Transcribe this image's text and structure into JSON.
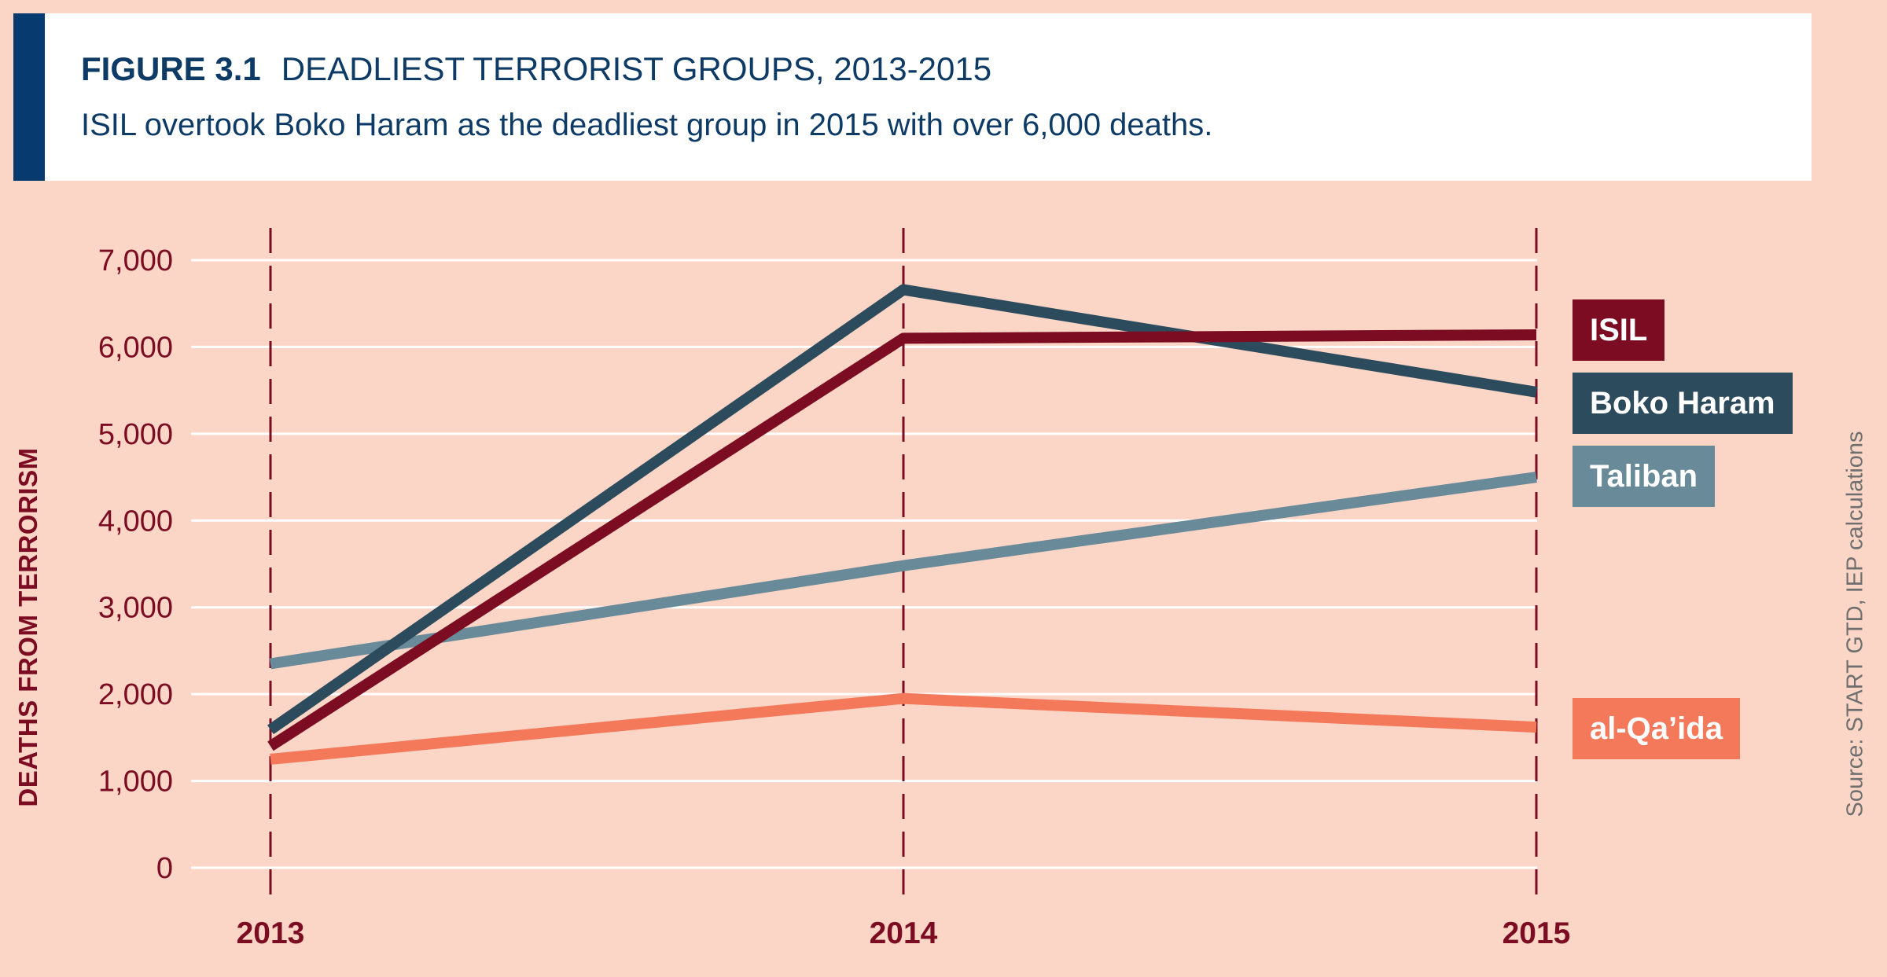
{
  "header": {
    "figure_label": "FIGURE 3.1",
    "figure_title": "DEADLIEST TERRORIST GROUPS, 2013-2015",
    "subtitle": "ISIL overtook Boko Haram as the deadliest group in 2015 with over 6,000 deaths."
  },
  "source": "Source: START GTD, IEP calculations",
  "colors": {
    "background": "#fbd5c6",
    "header_accent": "#073a6e",
    "axis_text": "#7b0c22",
    "gridline": "#ffffff",
    "year_marker": "#7b0c22"
  },
  "chart_data": {
    "type": "line",
    "title": "DEADLIEST TERRORIST GROUPS, 2013-2015",
    "xlabel": "",
    "ylabel": "DEATHS FROM TERRORISM",
    "x": [
      "2013",
      "2014",
      "2015"
    ],
    "ylim": [
      0,
      7000
    ],
    "yticks": [
      0,
      1000,
      2000,
      3000,
      4000,
      5000,
      6000,
      7000
    ],
    "ytick_labels": [
      "0",
      "1,000",
      "2,000",
      "3,000",
      "4,000",
      "5,000",
      "6,000",
      "7,000"
    ],
    "grid": "horizontal",
    "legend_placement": "right",
    "series": [
      {
        "name": "Taliban",
        "color": "#688a99",
        "values": [
          2350,
          3480,
          4500
        ]
      },
      {
        "name": "al-Qa’ida",
        "color": "#f4785a",
        "values": [
          1250,
          1950,
          1620
        ]
      },
      {
        "name": "Boko Haram",
        "color": "#2c4b5c",
        "values": [
          1590,
          6660,
          5480
        ]
      },
      {
        "name": "ISIL",
        "color": "#7b0c22",
        "values": [
          1400,
          6100,
          6140
        ]
      }
    ]
  }
}
